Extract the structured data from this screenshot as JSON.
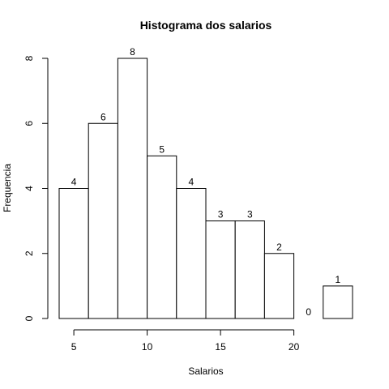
{
  "chart_data": {
    "type": "bar",
    "title": "Histograma dos salarios",
    "xlabel": "Salarios",
    "ylabel": "Frequencia",
    "bins": [
      {
        "start": 4,
        "end": 6,
        "count": 4
      },
      {
        "start": 6,
        "end": 8,
        "count": 6
      },
      {
        "start": 8,
        "end": 10,
        "count": 8
      },
      {
        "start": 10,
        "end": 12,
        "count": 5
      },
      {
        "start": 12,
        "end": 14,
        "count": 4
      },
      {
        "start": 14,
        "end": 16,
        "count": 3
      },
      {
        "start": 16,
        "end": 18,
        "count": 3
      },
      {
        "start": 18,
        "end": 20,
        "count": 2
      },
      {
        "start": 20,
        "end": 22,
        "count": 0
      },
      {
        "start": 22,
        "end": 24,
        "count": 1
      }
    ],
    "data_labels": [
      "4",
      "6",
      "8",
      "5",
      "4",
      "3",
      "3",
      "2",
      "0",
      "1"
    ],
    "xticks": [
      5,
      10,
      15,
      20
    ],
    "xtick_labels": [
      "5",
      "10",
      "15",
      "20"
    ],
    "yticks": [
      0,
      2,
      4,
      6,
      8
    ],
    "ytick_labels": [
      "0",
      "2",
      "4",
      "6",
      "8"
    ],
    "xlim": [
      4,
      24
    ],
    "ylim": [
      0,
      8
    ],
    "grid": false,
    "legend": "none",
    "colors": {
      "bar_fill": "#ffffff",
      "bar_stroke": "#000000"
    }
  }
}
